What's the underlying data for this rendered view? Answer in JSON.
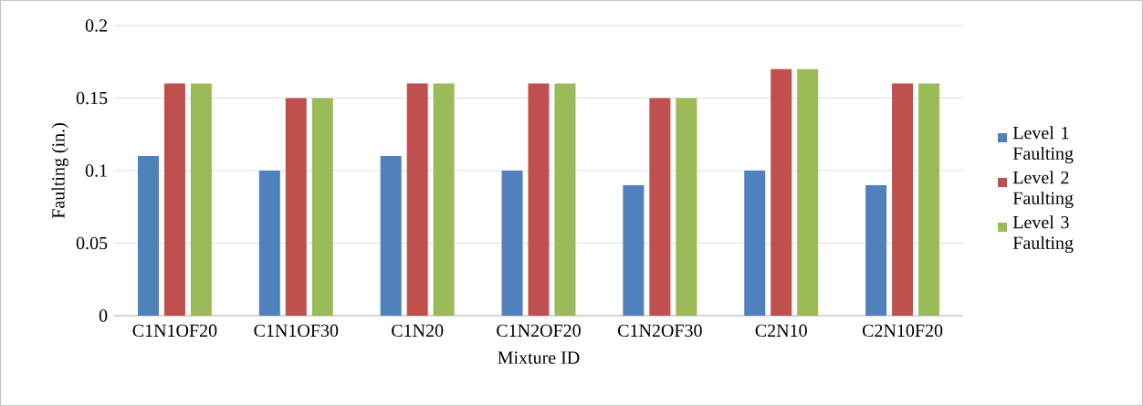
{
  "chart_data": {
    "type": "bar",
    "xlabel": "Mixture ID",
    "ylabel": "Faulting (in.)",
    "categories": [
      "C1N1OF20",
      "C1N1OF30",
      "C1N20",
      "C1N2OF20",
      "C1N2OF30",
      "C2N10",
      "C2N10F20"
    ],
    "series": [
      {
        "name": "Level 1 Faulting",
        "color": "#4f81bd",
        "values": [
          0.11,
          0.1,
          0.11,
          0.1,
          0.09,
          0.1,
          0.09
        ]
      },
      {
        "name": "Level 2 Faulting",
        "color": "#c0504d",
        "values": [
          0.16,
          0.15,
          0.16,
          0.16,
          0.15,
          0.17,
          0.16
        ]
      },
      {
        "name": "Level 3 Faulting",
        "color": "#9bbb59",
        "values": [
          0.16,
          0.15,
          0.16,
          0.16,
          0.15,
          0.17,
          0.16
        ]
      }
    ],
    "ylim": [
      0,
      0.2
    ],
    "yticks": [
      0,
      0.05,
      0.1,
      0.15,
      0.2
    ],
    "grid": "y",
    "legend": "right"
  }
}
